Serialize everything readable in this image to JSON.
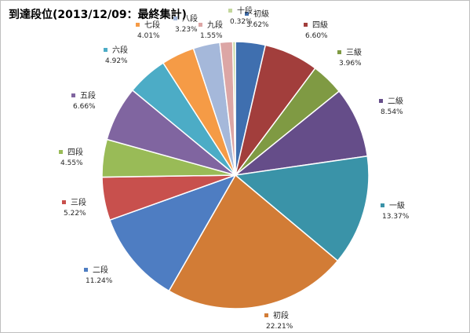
{
  "chart_data": {
    "type": "pie",
    "title": "到達段位(2013/12/09：最終集計)",
    "unit": "%",
    "slices": [
      {
        "label": "初級",
        "value": 3.62,
        "value_text": "3.62%",
        "color": "#3f6faf"
      },
      {
        "label": "四級",
        "value": 6.6,
        "value_text": "6.60%",
        "color": "#a23e3c"
      },
      {
        "label": "三級",
        "value": 3.96,
        "value_text": "3.96%",
        "color": "#7f9a43"
      },
      {
        "label": "二級",
        "value": 8.54,
        "value_text": "8.54%",
        "color": "#654d89"
      },
      {
        "label": "一級",
        "value": 13.37,
        "value_text": "13.37%",
        "color": "#3a93a8"
      },
      {
        "label": "初段",
        "value": 22.21,
        "value_text": "22.21%",
        "color": "#d27c36"
      },
      {
        "label": "二段",
        "value": 11.24,
        "value_text": "11.24%",
        "color": "#4e7dc2"
      },
      {
        "label": "三段",
        "value": 5.22,
        "value_text": "5.22%",
        "color": "#c8504d"
      },
      {
        "label": "四段",
        "value": 4.55,
        "value_text": "4.55%",
        "color": "#99bb57"
      },
      {
        "label": "五段",
        "value": 6.66,
        "value_text": "6.66%",
        "color": "#8065a0"
      },
      {
        "label": "六段",
        "value": 4.92,
        "value_text": "4.92%",
        "color": "#4cacc6"
      },
      {
        "label": "七段",
        "value": 4.01,
        "value_text": "4.01%",
        "color": "#f59b46"
      },
      {
        "label": "八段",
        "value": 3.23,
        "value_text": "3.23%",
        "color": "#a5b8da"
      },
      {
        "label": "九段",
        "value": 1.55,
        "value_text": "1.55%",
        "color": "#dca6a5"
      },
      {
        "label": "十段",
        "value": 0.32,
        "value_text": "0.32%",
        "color": "#c3d79c"
      }
    ],
    "start_at": "12 o'clock",
    "direction": "clockwise",
    "data_labels": "outside, with colored marker, category name and percent"
  }
}
